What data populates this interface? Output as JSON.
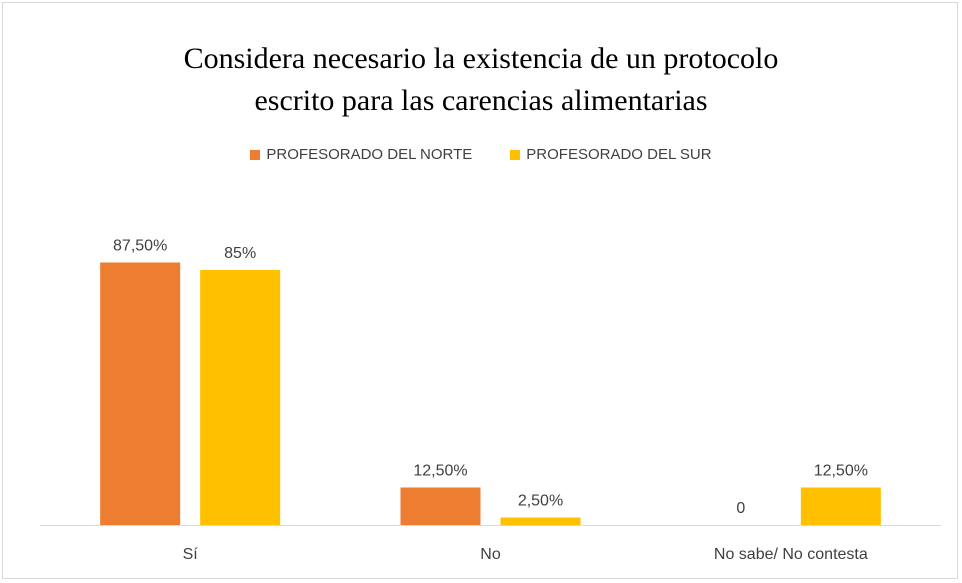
{
  "chart_data": {
    "type": "bar",
    "title_line1": "Considera necesario la existencia de un protocolo",
    "title_line2": "escrito para las carencias alimentarias",
    "categories": [
      "Sí",
      "No",
      "No sabe/ No contesta"
    ],
    "series": [
      {
        "name": "PROFESORADO DEL NORTE",
        "color": "#ED7D31",
        "values": [
          87.5,
          12.5,
          0
        ],
        "labels": [
          "87,50%",
          "12,50%",
          "0"
        ]
      },
      {
        "name": "PROFESORADO DEL SUR",
        "color": "#FFC000",
        "values": [
          85,
          2.5,
          12.5
        ],
        "labels": [
          "85%",
          "2,50%",
          "12,50%"
        ]
      }
    ],
    "ylim": [
      0,
      100
    ],
    "grid": false,
    "legend_position": "top"
  }
}
